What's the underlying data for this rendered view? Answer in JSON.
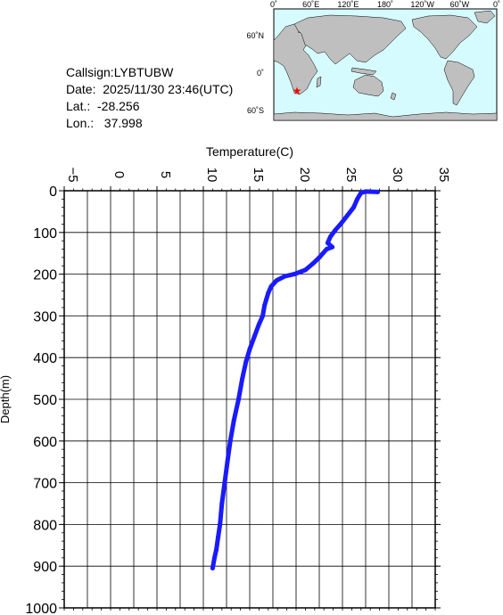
{
  "station": {
    "callsign": "Callsign:LYBTUBW",
    "date": "Date:  2025/11/30 23:46(UTC)",
    "lat": "Lat.:  -28.256",
    "lon": "Lon.:   37.998"
  },
  "map": {
    "top_labels": [
      "0˚",
      "60˚E",
      "120˚E",
      "180˚",
      "120˚W",
      "60˚W",
      "0˚"
    ],
    "lat_labels": [
      "60˚N",
      "0˚",
      "60˚S"
    ],
    "ocean_color": "#d6fbff",
    "land_color": "#bfbfbf",
    "marker_color": "#ff0000"
  },
  "chart_data": {
    "type": "line",
    "xlabel": "Temperature(C)",
    "ylabel": "Depth(m)",
    "xlim": [
      -5,
      35
    ],
    "ylim": [
      0,
      1000
    ],
    "x_ticks": [
      -5,
      0,
      5,
      10,
      15,
      20,
      25,
      30,
      35
    ],
    "y_ticks": [
      0,
      100,
      200,
      300,
      400,
      500,
      600,
      700,
      800,
      900,
      1000
    ],
    "grid": true,
    "y_inverted": true,
    "line_color": "#1a1aff",
    "series": [
      {
        "points": [
          [
            28.8,
            3
          ],
          [
            27.5,
            2
          ],
          [
            27.0,
            5
          ],
          [
            26.6,
            20
          ],
          [
            26.2,
            40
          ],
          [
            25.5,
            60
          ],
          [
            24.8,
            80
          ],
          [
            24.2,
            95
          ],
          [
            23.7,
            110
          ],
          [
            23.4,
            125
          ],
          [
            23.9,
            135
          ],
          [
            23.3,
            140
          ],
          [
            22.5,
            160
          ],
          [
            21.8,
            175
          ],
          [
            21.0,
            190
          ],
          [
            19.8,
            200
          ],
          [
            18.8,
            205
          ],
          [
            17.9,
            215
          ],
          [
            17.3,
            230
          ],
          [
            17.0,
            245
          ],
          [
            16.8,
            260
          ],
          [
            16.6,
            275
          ],
          [
            16.4,
            300
          ],
          [
            16.0,
            320
          ],
          [
            15.5,
            350
          ],
          [
            15.0,
            380
          ],
          [
            14.6,
            410
          ],
          [
            14.2,
            450
          ],
          [
            13.8,
            500
          ],
          [
            13.3,
            550
          ],
          [
            12.9,
            600
          ],
          [
            12.6,
            650
          ],
          [
            12.3,
            700
          ],
          [
            12.0,
            750
          ],
          [
            11.8,
            800
          ],
          [
            11.6,
            830
          ],
          [
            11.4,
            860
          ],
          [
            11.2,
            880
          ],
          [
            11.0,
            905
          ]
        ]
      }
    ]
  }
}
